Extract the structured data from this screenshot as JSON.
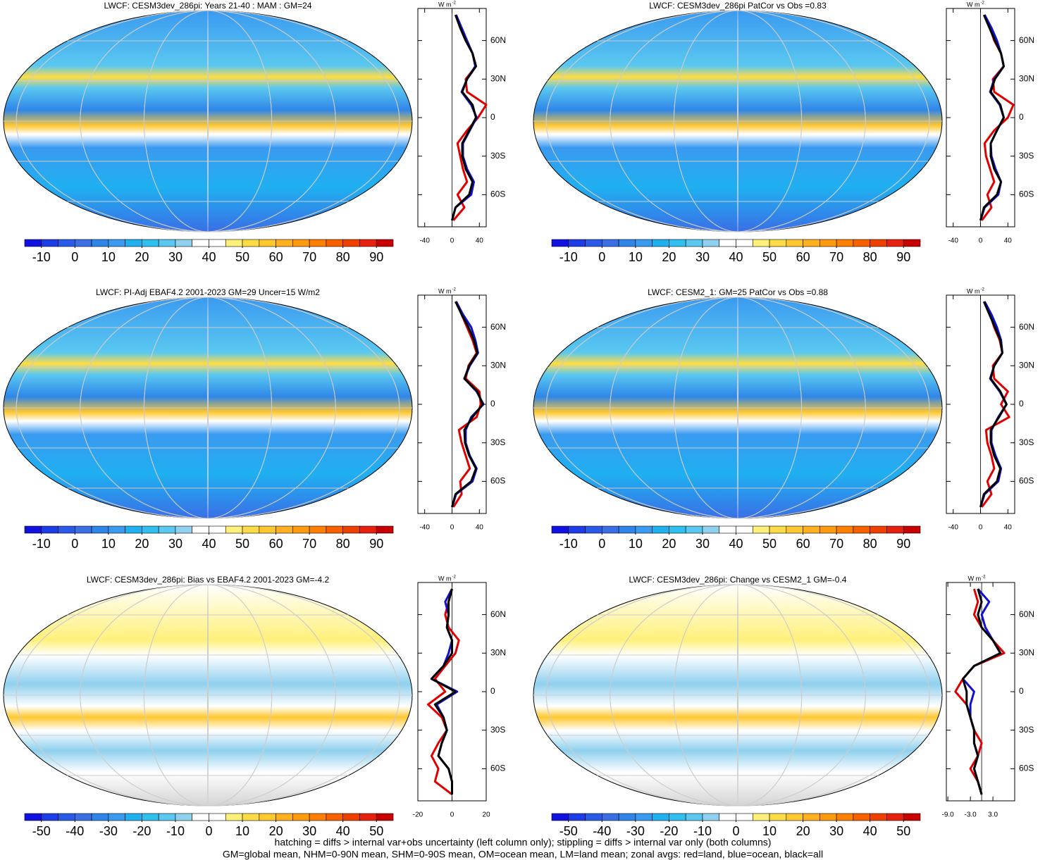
{
  "palette": [
    "#1010e0",
    "#1c3ce6",
    "#2a5ae8",
    "#3a6fe6",
    "#2f86e8",
    "#3a9af0",
    "#1fb0f0",
    "#30c0f0",
    "#5ac8f0",
    "#8fd0ee",
    "#ffffff",
    "#ffffff",
    "#fff07a",
    "#ffdc46",
    "#ffc830",
    "#ffb01e",
    "#ff9a10",
    "#ff8000",
    "#f86000",
    "#f04000",
    "#e82010",
    "#c80000"
  ],
  "panels": [
    {
      "title": "LWCF: CESM3dev_286pi: Years 21-40 : MAM : GM=24",
      "colorbar": {
        "lim": [
          -15,
          95
        ],
        "ticks": [
          -10,
          0,
          10,
          20,
          30,
          40,
          50,
          60,
          70,
          80,
          90
        ]
      },
      "zonal": {
        "units": "W m",
        "units_exp": "-2",
        "xlim": [
          -50,
          50
        ],
        "xticks": [
          -40,
          0,
          40
        ],
        "ylim": [
          -85,
          85
        ],
        "yticks": [
          {
            "value": 60,
            "label": "60N"
          },
          {
            "value": 30,
            "label": "30N"
          },
          0,
          {
            "value": -30,
            "label": "30S"
          },
          {
            "value": -60,
            "label": "60S"
          }
        ],
        "lat": [
          -80,
          -70,
          -60,
          -50,
          -40,
          -30,
          -20,
          -10,
          0,
          10,
          20,
          30,
          40,
          50,
          60,
          70,
          80
        ],
        "series": [
          {
            "color": "#e00000",
            "values": [
              2,
              18,
              8,
              22,
              16,
              12,
              8,
              22,
              38,
              50,
              22,
              20,
              35,
              30,
              20,
              12,
              5
            ]
          },
          {
            "color": "#1010d0",
            "values": [
              0,
              5,
              28,
              32,
              22,
              16,
              16,
              26,
              36,
              28,
              14,
              22,
              34,
              30,
              22,
              14,
              6
            ]
          },
          {
            "color": "#000000",
            "values": [
              0,
              5,
              25,
              30,
              20,
              15,
              15,
              25,
              35,
              30,
              15,
              22,
              35,
              30,
              20,
              12,
              5
            ]
          }
        ]
      }
    },
    {
      "title": "LWCF: CESM3dev_286pi PatCor vs Obs =0.83",
      "colorbar": {
        "lim": [
          -15,
          95
        ],
        "ticks": [
          -10,
          0,
          10,
          20,
          30,
          40,
          50,
          60,
          70,
          80,
          90
        ]
      },
      "zonal": {
        "units": "W m",
        "units_exp": "-2",
        "xlim": [
          -50,
          50
        ],
        "xticks": [
          -40,
          0,
          40
        ],
        "ylim": [
          -85,
          85
        ],
        "yticks": [
          {
            "value": 60,
            "label": "60N"
          },
          {
            "value": 30,
            "label": "30N"
          },
          0,
          {
            "value": -30,
            "label": "30S"
          },
          {
            "value": -60,
            "label": "60S"
          }
        ],
        "lat": [
          -80,
          -70,
          -60,
          -50,
          -40,
          -30,
          -20,
          -10,
          0,
          10,
          20,
          30,
          40,
          50,
          60,
          70,
          80
        ],
        "series": [
          {
            "color": "#e00000",
            "values": [
              2,
              16,
              10,
              20,
              14,
              8,
              6,
              20,
              40,
              48,
              20,
              18,
              34,
              30,
              20,
              14,
              6
            ]
          },
          {
            "color": "#1010d0",
            "values": [
              0,
              6,
              26,
              30,
              22,
              16,
              15,
              24,
              34,
              28,
              14,
              20,
              34,
              30,
              24,
              16,
              6
            ]
          },
          {
            "color": "#000000",
            "values": [
              0,
              5,
              24,
              30,
              20,
              15,
              15,
              24,
              34,
              29,
              15,
              21,
              34,
              30,
              21,
              13,
              5
            ]
          }
        ]
      }
    },
    {
      "title": "LWCF: PI-Adj EBAF4.2 2001-2023 GM=29 Uncer=15 W/m2",
      "colorbar": {
        "lim": [
          -15,
          95
        ],
        "ticks": [
          -10,
          0,
          10,
          20,
          30,
          40,
          50,
          60,
          70,
          80,
          90
        ]
      },
      "zonal": {
        "units": "W m",
        "units_exp": "-2",
        "xlim": [
          -50,
          50
        ],
        "xticks": [
          -40,
          0,
          40
        ],
        "ylim": [
          -85,
          85
        ],
        "yticks": [
          {
            "value": 60,
            "label": "60N"
          },
          {
            "value": 30,
            "label": "30N"
          },
          0,
          {
            "value": -30,
            "label": "30S"
          },
          {
            "value": -60,
            "label": "60S"
          }
        ],
        "lat": [
          -80,
          -70,
          -60,
          -50,
          -40,
          -30,
          -20,
          -10,
          0,
          10,
          20,
          30,
          40,
          50,
          60,
          70,
          80
        ],
        "series": [
          {
            "color": "#e00000",
            "values": [
              2,
              14,
              12,
              26,
              20,
              14,
              10,
              36,
              42,
              40,
              20,
              24,
              36,
              30,
              22,
              14,
              6
            ]
          },
          {
            "color": "#1010d0",
            "values": [
              0,
              6,
              30,
              36,
              26,
              20,
              20,
              28,
              46,
              36,
              18,
              26,
              38,
              34,
              28,
              16,
              6
            ]
          },
          {
            "color": "#000000",
            "values": [
              0,
              5,
              28,
              35,
              25,
              19,
              18,
              30,
              45,
              37,
              18,
              25,
              37,
              32,
              24,
              14,
              5
            ]
          }
        ]
      }
    },
    {
      "title": "LWCF: CESM2_1: GM=25 PatCor vs Obs =0.88",
      "colorbar": {
        "lim": [
          -15,
          95
        ],
        "ticks": [
          -10,
          0,
          10,
          20,
          30,
          40,
          50,
          60,
          70,
          80,
          90
        ]
      },
      "zonal": {
        "units": "W m",
        "units_exp": "-2",
        "xlim": [
          -50,
          50
        ],
        "xticks": [
          -40,
          0,
          40
        ],
        "ylim": [
          -85,
          85
        ],
        "yticks": [
          {
            "value": 60,
            "label": "60N"
          },
          {
            "value": 30,
            "label": "30N"
          },
          0,
          {
            "value": -30,
            "label": "30S"
          },
          {
            "value": -60,
            "label": "60S"
          }
        ],
        "lat": [
          -80,
          -70,
          -60,
          -50,
          -40,
          -30,
          -20,
          -10,
          0,
          10,
          20,
          30,
          40,
          50,
          60,
          70,
          80
        ],
        "series": [
          {
            "color": "#e00000",
            "values": [
              2,
              16,
              10,
              20,
              16,
              10,
              8,
              42,
              30,
              40,
              20,
              18,
              32,
              28,
              20,
              14,
              6
            ]
          },
          {
            "color": "#1010d0",
            "values": [
              0,
              6,
              26,
              30,
              22,
              16,
              16,
              26,
              38,
              28,
              14,
              20,
              32,
              30,
              24,
              16,
              6
            ]
          },
          {
            "color": "#000000",
            "values": [
              0,
              5,
              24,
              29,
              20,
              15,
              15,
              27,
              38,
              29,
              15,
              20,
              32,
              29,
              21,
              13,
              5
            ]
          }
        ]
      }
    },
    {
      "title": "LWCF: CESM3dev_286pi: Bias vs EBAF4.2 2001-2023 GM=-4.2",
      "colorbar": {
        "lim": [
          -55,
          55
        ],
        "ticks": [
          -50,
          -40,
          -30,
          -20,
          -10,
          0,
          10,
          20,
          30,
          40,
          50
        ]
      },
      "zonal": {
        "units": "W m",
        "units_exp": "-2",
        "xlim": [
          -20,
          20
        ],
        "xticks": [
          -20,
          0,
          20
        ],
        "ylim": [
          -85,
          85
        ],
        "yticks": [
          {
            "value": 60,
            "label": "60N"
          },
          {
            "value": 30,
            "label": "30N"
          },
          0,
          {
            "value": -30,
            "label": "30S"
          },
          {
            "value": -60,
            "label": "60S"
          }
        ],
        "lat": [
          -80,
          -70,
          -60,
          -50,
          -40,
          -30,
          -20,
          -10,
          0,
          10,
          20,
          30,
          40,
          50,
          60,
          70,
          80
        ],
        "series": [
          {
            "color": "#e00000",
            "values": [
              0,
              -10,
              -8,
              -12,
              -8,
              -3,
              -6,
              -14,
              -4,
              -10,
              -4,
              2,
              4,
              -2,
              -4,
              -2,
              0
            ]
          },
          {
            "color": "#1010d0",
            "values": [
              0,
              0,
              -2,
              -8,
              -6,
              -3,
              -5,
              -9,
              3,
              -12,
              -5,
              -2,
              0,
              -3,
              -2,
              -4,
              0
            ]
          },
          {
            "color": "#000000",
            "values": [
              0,
              0,
              -2,
              -8,
              -6,
              -3,
              -5,
              -10,
              2,
              -12,
              -5,
              0,
              0,
              -3,
              -2,
              -2,
              0
            ]
          }
        ]
      }
    },
    {
      "title": "LWCF: CESM3dev_286pi: Change vs CESM2_1 GM=-0.4",
      "colorbar": {
        "lim": [
          -55,
          55
        ],
        "ticks": [
          -50,
          -40,
          -30,
          -20,
          -10,
          0,
          10,
          20,
          30,
          40,
          50
        ]
      },
      "zonal": {
        "units": "W m",
        "units_exp": "-2",
        "xlim": [
          -9.4,
          8.8
        ],
        "xticks": [
          {
            "value": -9,
            "label": "-9.0"
          },
          {
            "value": -3,
            "label": "-3.0"
          },
          {
            "value": 3,
            "label": "3.0"
          }
        ],
        "ylim": [
          -85,
          85
        ],
        "yticks": [
          {
            "value": 60,
            "label": "60N"
          },
          {
            "value": 30,
            "label": "30N"
          },
          0,
          {
            "value": -30,
            "label": "30S"
          },
          {
            "value": -60,
            "label": "60S"
          }
        ],
        "lat": [
          -80,
          -70,
          -60,
          -50,
          -40,
          -30,
          -20,
          -10,
          0,
          10,
          20,
          30,
          40,
          50,
          60,
          70,
          80
        ],
        "series": [
          {
            "color": "#e00000",
            "values": [
              0,
              -1,
              -3,
              -1,
              0,
              -2,
              -3,
              -4,
              -7,
              -5,
              -2,
              6,
              3,
              0,
              -2,
              -1,
              -2
            ]
          },
          {
            "color": "#1010d0",
            "values": [
              0,
              -1,
              -2,
              -1,
              -2,
              -2,
              -3,
              -3,
              -2,
              -5,
              -2,
              5,
              3,
              1,
              0,
              2,
              -1
            ]
          },
          {
            "color": "#000000",
            "values": [
              0,
              -1,
              -2,
              -1,
              -2,
              -2,
              -3,
              -4,
              -4,
              -5,
              -2,
              5,
              3,
              0,
              -1,
              0,
              -1
            ]
          }
        ]
      }
    }
  ],
  "footer": [
    "hatching = diffs > internal var+obs uncertainty (left column only); stippling = diffs > internal var only (both columns)",
    "GM=global mean, NHM=0-90N mean, SHM=0-90S mean, OM=ocean mean, LM=land mean; zonal avgs: red=land, blue=ocean, black=all"
  ]
}
